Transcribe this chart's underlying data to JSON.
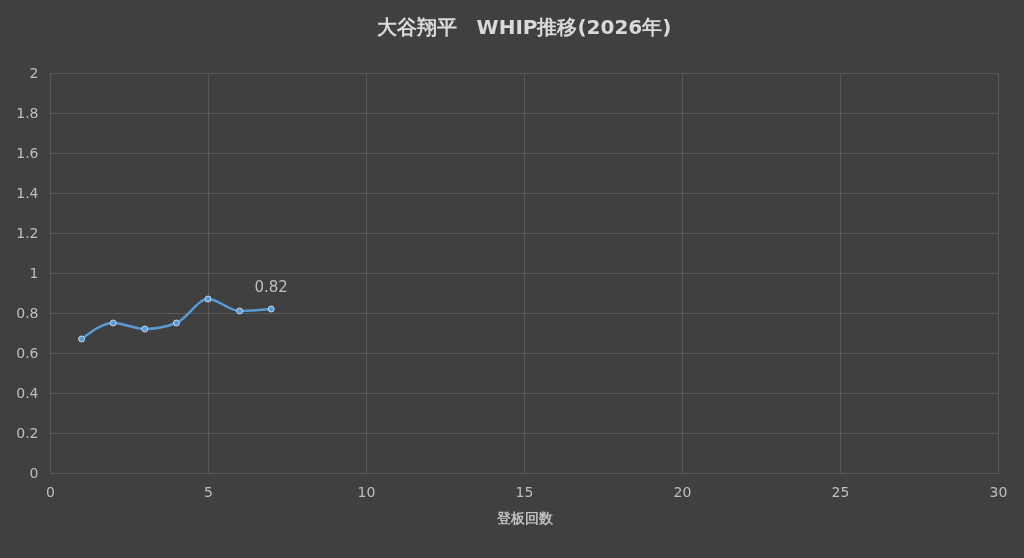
{
  "chart_data": {
    "type": "line",
    "title": "大谷翔平　WHIP推移(2026年)",
    "xlabel": "登板回数",
    "x": [
      1,
      2,
      3,
      4,
      5,
      6,
      7
    ],
    "series": [
      {
        "color": "#5b9bd5",
        "values": [
          0.67,
          0.75,
          0.72,
          0.75,
          0.87,
          0.81,
          0.82
        ],
        "value_labels": [
          null,
          null,
          null,
          null,
          null,
          null,
          "0.82"
        ]
      }
    ],
    "xlim": [
      0,
      30
    ],
    "xticks": [
      0,
      5,
      10,
      15,
      20,
      25,
      30
    ],
    "ylim": [
      0,
      2
    ],
    "yticks": [
      0,
      0.2,
      0.4,
      0.6,
      0.8,
      1,
      1.2,
      1.4,
      1.6,
      1.8,
      2
    ],
    "grid": true,
    "legend": false,
    "marker": "circle",
    "line_style": "solid"
  }
}
